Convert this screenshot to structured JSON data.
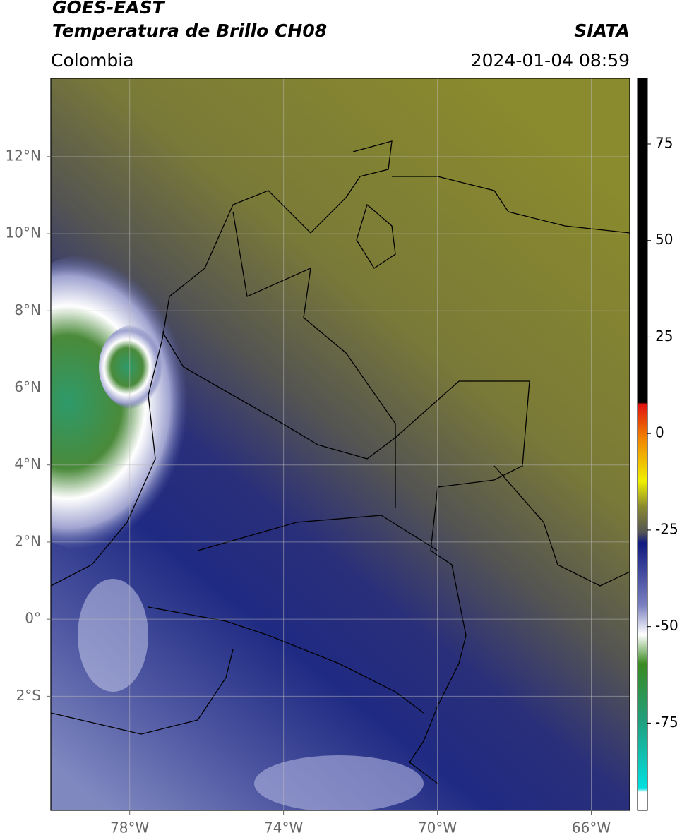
{
  "header": {
    "title": "GOES-EAST",
    "product": "Temperatura de Brillo CH08",
    "source": "SIATA",
    "region": "Colombia",
    "datetime": "2024-01-04 08:59"
  },
  "map": {
    "xlim": [
      -80.05,
      -65.0
    ],
    "ylim": [
      -4.96,
      14.03
    ],
    "xticks": [
      {
        "value": -78,
        "label": "78°W"
      },
      {
        "value": -74,
        "label": "74°W"
      },
      {
        "value": -70,
        "label": "70°W"
      },
      {
        "value": -66,
        "label": "66°W"
      }
    ],
    "yticks": [
      {
        "value": 12,
        "label": "12°N"
      },
      {
        "value": 10,
        "label": "10°N"
      },
      {
        "value": 8,
        "label": "8°N"
      },
      {
        "value": 6,
        "label": "6°N"
      },
      {
        "value": 4,
        "label": "4°N"
      },
      {
        "value": 2,
        "label": "2°N"
      },
      {
        "value": 0,
        "label": "0°"
      },
      {
        "value": -2,
        "label": "2°S"
      }
    ],
    "grid": true
  },
  "colorbar": {
    "lim": [
      -97.6,
      92
    ],
    "ticks": [
      75,
      50,
      25,
      0,
      -25,
      -50,
      -75
    ]
  }
}
